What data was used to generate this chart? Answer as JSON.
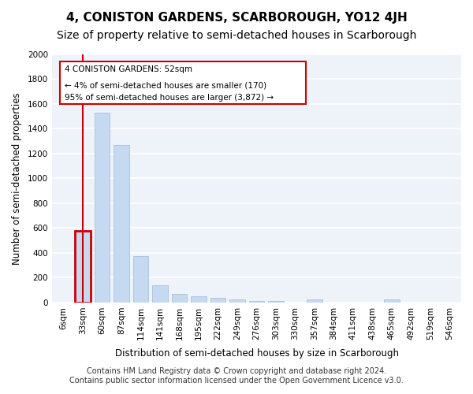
{
  "title": "4, CONISTON GARDENS, SCARBOROUGH, YO12 4JH",
  "subtitle": "Size of property relative to semi-detached houses in Scarborough",
  "xlabel": "Distribution of semi-detached houses by size in Scarborough",
  "ylabel": "Number of semi-detached properties",
  "categories": [
    "6sqm",
    "33sqm",
    "60sqm",
    "87sqm",
    "114sqm",
    "141sqm",
    "168sqm",
    "195sqm",
    "222sqm",
    "249sqm",
    "276sqm",
    "303sqm",
    "330sqm",
    "357sqm",
    "384sqm",
    "411sqm",
    "438sqm",
    "465sqm",
    "492sqm",
    "519sqm",
    "546sqm"
  ],
  "values": [
    0,
    580,
    1530,
    1270,
    375,
    140,
    70,
    50,
    35,
    25,
    15,
    15,
    0,
    25,
    0,
    0,
    0,
    25,
    0,
    0,
    0
  ],
  "bar_color": "#c5d9f0",
  "bar_edge_color": "#a0b8d8",
  "highlight_index": 1,
  "highlight_box_color": "#cc0000",
  "annotation_lines": [
    "4 CONISTON GARDENS: 52sqm",
    "← 4% of semi-detached houses are smaller (170)",
    "95% of semi-detached houses are larger (3,872) →"
  ],
  "ylim": [
    0,
    2000
  ],
  "yticks": [
    0,
    200,
    400,
    600,
    800,
    1000,
    1200,
    1400,
    1600,
    1800,
    2000
  ],
  "footer_line1": "Contains HM Land Registry data © Crown copyright and database right 2024.",
  "footer_line2": "Contains public sector information licensed under the Open Government Licence v3.0.",
  "bg_color": "#eef3fa",
  "grid_color": "#ffffff",
  "title_fontsize": 11,
  "subtitle_fontsize": 10,
  "axis_label_fontsize": 8.5,
  "tick_fontsize": 7.5,
  "footer_fontsize": 7
}
